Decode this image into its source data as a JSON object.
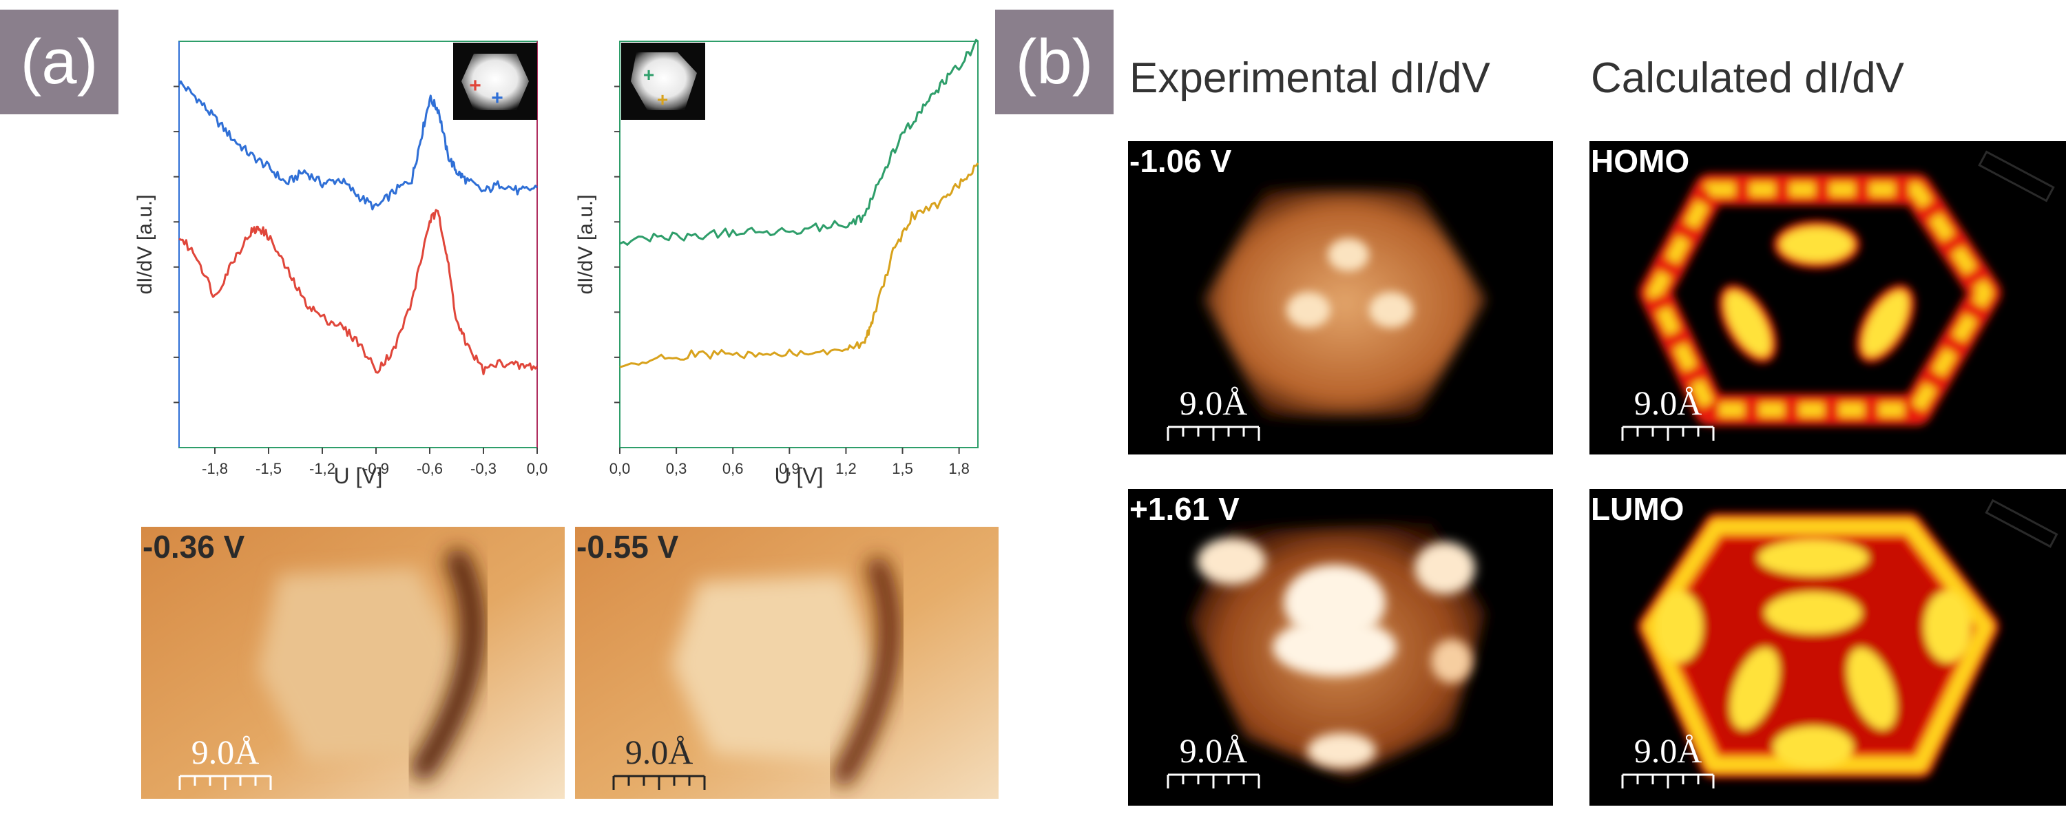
{
  "panels": {
    "a": "(a)",
    "b": "(b)"
  },
  "column_titles": {
    "experimental": "Experimental dI/dV",
    "calculated": "Calculated dI/dV"
  },
  "chart_data": [
    {
      "type": "line",
      "title": "",
      "xlabel": "U [V]",
      "ylabel": "dI/dV [a.u.]",
      "xlim": [
        -2.0,
        0.0
      ],
      "ylim": [
        0,
        10
      ],
      "xticks": [
        -1.8,
        -1.5,
        -1.2,
        -0.9,
        -0.6,
        -0.3,
        0.0
      ],
      "xtick_labels": [
        "-1,8",
        "-1,5",
        "-1,2",
        "-0,9",
        "-0,6",
        "-0,3",
        "0,0"
      ],
      "series": [
        {
          "name": "blue",
          "color": "#2f6fd6",
          "x": [
            -2.0,
            -1.9,
            -1.8,
            -1.7,
            -1.6,
            -1.5,
            -1.4,
            -1.3,
            -1.2,
            -1.1,
            -1.0,
            -0.9,
            -0.8,
            -0.7,
            -0.65,
            -0.6,
            -0.55,
            -0.5,
            -0.45,
            -0.4,
            -0.3,
            -0.2,
            -0.1,
            0.0
          ],
          "y": [
            9.0,
            8.6,
            8.1,
            7.6,
            7.2,
            6.9,
            6.5,
            6.8,
            6.5,
            6.6,
            6.2,
            5.9,
            6.3,
            6.6,
            7.6,
            8.6,
            8.3,
            7.2,
            6.8,
            6.6,
            6.3,
            6.5,
            6.3,
            6.4
          ]
        },
        {
          "name": "red",
          "color": "#e0463a",
          "x": [
            -2.0,
            -1.9,
            -1.8,
            -1.7,
            -1.6,
            -1.55,
            -1.5,
            -1.4,
            -1.3,
            -1.2,
            -1.1,
            -1.0,
            -0.9,
            -0.8,
            -0.7,
            -0.6,
            -0.55,
            -0.5,
            -0.45,
            -0.4,
            -0.3,
            -0.2,
            -0.1,
            0.0
          ],
          "y": [
            5.2,
            4.7,
            3.7,
            4.6,
            5.3,
            5.4,
            5.2,
            4.4,
            3.6,
            3.2,
            3.0,
            2.6,
            1.9,
            2.4,
            3.6,
            5.6,
            5.8,
            4.6,
            3.1,
            2.6,
            1.9,
            2.1,
            2.0,
            2.0
          ]
        }
      ],
      "insets": [
        {
          "marker": "+",
          "color": "#e0463a"
        },
        {
          "marker": "+",
          "color": "#2f6fd6"
        }
      ]
    },
    {
      "type": "line",
      "title": "",
      "xlabel": "U [V]",
      "ylabel": "dI/dV [a.u.]",
      "xlim": [
        0.0,
        1.9
      ],
      "ylim": [
        0,
        10
      ],
      "xticks": [
        0.0,
        0.3,
        0.6,
        0.9,
        1.2,
        1.5,
        1.8
      ],
      "xtick_labels": [
        "0,0",
        "0,3",
        "0,6",
        "0,9",
        "1,2",
        "1,5",
        "1,8"
      ],
      "series": [
        {
          "name": "green",
          "color": "#2e9e6a",
          "x": [
            0.0,
            0.2,
            0.4,
            0.6,
            0.8,
            1.0,
            1.2,
            1.3,
            1.4,
            1.5,
            1.6,
            1.7,
            1.8,
            1.9
          ],
          "y": [
            5.0,
            5.2,
            5.2,
            5.3,
            5.3,
            5.4,
            5.5,
            5.7,
            6.8,
            7.7,
            8.3,
            8.9,
            9.4,
            10.0
          ]
        },
        {
          "name": "yellow",
          "color": "#d8a21c",
          "x": [
            0.0,
            0.2,
            0.4,
            0.6,
            0.8,
            1.0,
            1.2,
            1.3,
            1.35,
            1.45,
            1.55,
            1.7,
            1.8,
            1.9
          ],
          "y": [
            1.9,
            2.2,
            2.3,
            2.3,
            2.3,
            2.3,
            2.4,
            2.6,
            3.3,
            4.8,
            5.7,
            6.0,
            6.5,
            7.0
          ]
        }
      ],
      "insets": [
        {
          "marker": "+",
          "color": "#2e9e6a"
        },
        {
          "marker": "+",
          "color": "#d8a21c"
        }
      ]
    }
  ],
  "images": {
    "topo_1": {
      "voltage": "-0.36 V",
      "scale": "9.0Å"
    },
    "topo_2": {
      "voltage": "-0.55 V",
      "scale": "9.0Å"
    },
    "exp_1": {
      "voltage": "-1.06 V",
      "scale": "9.0Å"
    },
    "exp_2": {
      "voltage": "+1.61 V",
      "scale": "9.0Å"
    },
    "calc_1": {
      "orbital": "HOMO",
      "scale": "9.0Å"
    },
    "calc_2": {
      "orbital": "LUMO",
      "scale": "9.0Å"
    }
  }
}
